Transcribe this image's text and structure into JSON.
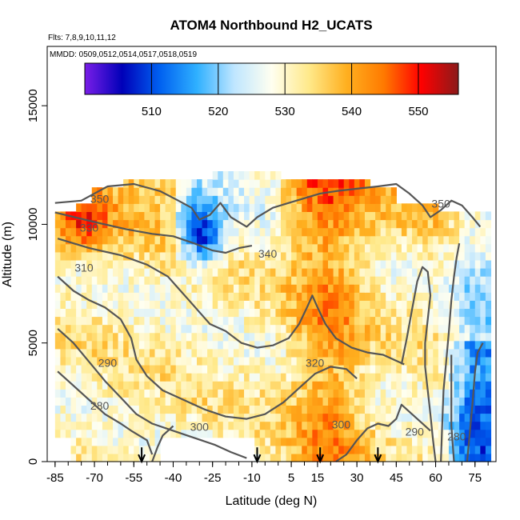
{
  "colors": {
    "contour": "#555555",
    "frame": "#000000",
    "palette": [
      "#7a1ee8",
      "#0000b8",
      "#0060f0",
      "#2fb0ff",
      "#bfe6ff",
      "#fffff0",
      "#ffe98a",
      "#ffb020",
      "#ff7a00",
      "#ff0000",
      "#8b1a1a"
    ]
  },
  "chart_data": {
    "type": "heatmap",
    "title": "ATOM4 Northbound H2_UCATS",
    "flights_note": "Flts: 7,8,9,10,11,12",
    "dates_note": "MMDD: 0509,0512,0514,0517,0518,0519",
    "xlabel": "Latitude (deg N)",
    "ylabel": "Altitude (m)",
    "xlim": [
      -88,
      83
    ],
    "ylim": [
      0,
      17500
    ],
    "xticks": [
      "-85",
      "-70",
      "-55",
      "-40",
      "-25",
      "-10",
      "5",
      "15",
      "30",
      "45",
      "60",
      "75"
    ],
    "xtick_values": [
      -85,
      -70,
      -55,
      -40,
      -25,
      -10,
      5,
      15,
      30,
      45,
      60,
      75
    ],
    "yticks": [
      "0",
      "5000",
      "10000",
      "15000"
    ],
    "ytick_values": [
      0,
      5000,
      10000,
      15000
    ],
    "colorbar": {
      "range": [
        500,
        556
      ],
      "tick_labels": [
        "510",
        "520",
        "530",
        "540",
        "550"
      ],
      "tick_values": [
        510,
        520,
        530,
        540,
        550
      ],
      "legend_placement": "top"
    },
    "grid": false,
    "profile_markers_lat": [
      -52,
      -8,
      16,
      38
    ],
    "contour_labels": [
      {
        "text": "350",
        "lat": -68,
        "alt": 10900
      },
      {
        "text": "330",
        "lat": -72,
        "alt": 9700
      },
      {
        "text": "310",
        "lat": -74,
        "alt": 8000
      },
      {
        "text": "290",
        "lat": -65,
        "alt": 4000
      },
      {
        "text": "280",
        "lat": -68,
        "alt": 2200
      },
      {
        "text": "300",
        "lat": -30,
        "alt": 1300
      },
      {
        "text": "340",
        "lat": -4,
        "alt": 8600
      },
      {
        "text": "320",
        "lat": 14,
        "alt": 4000
      },
      {
        "text": "300",
        "lat": 24,
        "alt": 1400
      },
      {
        "text": "290",
        "lat": 52,
        "alt": 1100
      },
      {
        "text": "280",
        "lat": 68,
        "alt": 900
      },
      {
        "text": "350",
        "lat": 62,
        "alt": 10700
      }
    ],
    "contours": [
      [
        [
          -85,
          10900
        ],
        [
          -75,
          11000
        ],
        [
          -65,
          11600
        ],
        [
          -55,
          11700
        ],
        [
          -45,
          11400
        ],
        [
          -38,
          11000
        ],
        [
          -33,
          10700
        ],
        [
          -30,
          10200
        ],
        [
          -26,
          10400
        ],
        [
          -22,
          10900
        ],
        [
          -18,
          10300
        ],
        [
          -12,
          9900
        ],
        [
          -8,
          10300
        ],
        [
          -2,
          10700
        ],
        [
          4,
          10900
        ],
        [
          10,
          11100
        ],
        [
          16,
          11300
        ],
        [
          22,
          11400
        ],
        [
          30,
          11500
        ],
        [
          38,
          11600
        ],
        [
          45,
          11700
        ],
        [
          50,
          11300
        ],
        [
          55,
          10800
        ],
        [
          58,
          10300
        ],
        [
          62,
          10600
        ],
        [
          66,
          11000
        ],
        [
          70,
          10800
        ],
        [
          74,
          10300
        ],
        [
          77,
          9900
        ]
      ],
      [
        [
          -85,
          10500
        ],
        [
          -70,
          10100
        ],
        [
          -58,
          9800
        ],
        [
          -48,
          9600
        ],
        [
          -40,
          9500
        ],
        [
          -32,
          9200
        ],
        [
          -25,
          8900
        ],
        [
          -20,
          8800
        ],
        [
          -15,
          9000
        ],
        [
          -10,
          9100
        ]
      ],
      [
        [
          -84,
          9400
        ],
        [
          -72,
          9000
        ],
        [
          -60,
          8700
        ],
        [
          -50,
          8300
        ],
        [
          -42,
          7800
        ],
        [
          -38,
          7300
        ],
        [
          -34,
          6800
        ],
        [
          -30,
          6300
        ],
        [
          -26,
          5800
        ],
        [
          -20,
          5500
        ],
        [
          -14,
          5000
        ],
        [
          -8,
          4800
        ],
        [
          -2,
          4900
        ],
        [
          4,
          5200
        ],
        [
          8,
          5800
        ],
        [
          11,
          6500
        ],
        [
          13,
          7000
        ],
        [
          15,
          6500
        ],
        [
          18,
          5800
        ],
        [
          22,
          5200
        ],
        [
          28,
          4800
        ],
        [
          34,
          4600
        ],
        [
          40,
          4500
        ],
        [
          44,
          4300
        ],
        [
          48,
          4100
        ]
      ],
      [
        [
          -84,
          7800
        ],
        [
          -78,
          7200
        ],
        [
          -72,
          6800
        ],
        [
          -66,
          6500
        ],
        [
          -60,
          6000
        ],
        [
          -56,
          5200
        ],
        [
          -54,
          4300
        ],
        [
          -50,
          3600
        ],
        [
          -44,
          3000
        ],
        [
          -36,
          2600
        ],
        [
          -28,
          2200
        ],
        [
          -20,
          1900
        ],
        [
          -12,
          1800
        ],
        [
          -5,
          2000
        ],
        [
          2,
          2500
        ],
        [
          8,
          3100
        ],
        [
          14,
          3700
        ],
        [
          20,
          4000
        ],
        [
          26,
          3900
        ],
        [
          30,
          3500
        ]
      ],
      [
        [
          -84,
          5600
        ],
        [
          -78,
          5000
        ],
        [
          -72,
          4200
        ],
        [
          -66,
          3400
        ],
        [
          -60,
          2700
        ],
        [
          -54,
          2000
        ],
        [
          -48,
          1600
        ],
        [
          -40,
          1300
        ],
        [
          -32,
          1000
        ],
        [
          -24,
          700
        ],
        [
          -18,
          400
        ],
        [
          -12,
          150
        ]
      ],
      [
        [
          -84,
          3800
        ],
        [
          -78,
          3200
        ],
        [
          -72,
          2600
        ],
        [
          -66,
          2000
        ],
        [
          -60,
          1600
        ],
        [
          -56,
          1300
        ],
        [
          -50,
          900
        ],
        [
          -48,
          300
        ]
      ],
      [
        [
          -48,
          0
        ],
        [
          -46,
          600
        ],
        [
          -44,
          1100
        ],
        [
          -40,
          1500
        ]
      ],
      [
        [
          22,
          0
        ],
        [
          26,
          300
        ],
        [
          30,
          900
        ],
        [
          34,
          1400
        ],
        [
          38,
          1600
        ],
        [
          42,
          1500
        ],
        [
          45,
          1800
        ],
        [
          47,
          2400
        ],
        [
          50,
          2100
        ],
        [
          54,
          1700
        ],
        [
          58,
          1300
        ]
      ],
      [
        [
          47,
          4100
        ],
        [
          49,
          5200
        ],
        [
          51,
          6400
        ],
        [
          53,
          7600
        ],
        [
          55,
          8200
        ],
        [
          57,
          8000
        ],
        [
          58,
          7000
        ],
        [
          57,
          6000
        ],
        [
          56,
          5000
        ],
        [
          56,
          4000
        ],
        [
          57,
          3000
        ],
        [
          58,
          2000
        ],
        [
          59,
          900
        ],
        [
          60,
          0
        ]
      ],
      [
        [
          62,
          0
        ],
        [
          62.5,
          1500
        ],
        [
          63,
          3000
        ],
        [
          64,
          4200
        ],
        [
          65,
          5400
        ],
        [
          66,
          6800
        ],
        [
          67,
          7800
        ],
        [
          68,
          8600
        ],
        [
          69,
          9200
        ]
      ],
      [
        [
          67,
          0
        ],
        [
          66,
          1500
        ],
        [
          66,
          3000
        ],
        [
          66,
          4500
        ]
      ],
      [
        [
          72,
          0
        ],
        [
          73,
          1200
        ],
        [
          74,
          2400
        ],
        [
          75,
          3800
        ],
        [
          76,
          4600
        ],
        [
          78,
          5000
        ]
      ]
    ]
  }
}
